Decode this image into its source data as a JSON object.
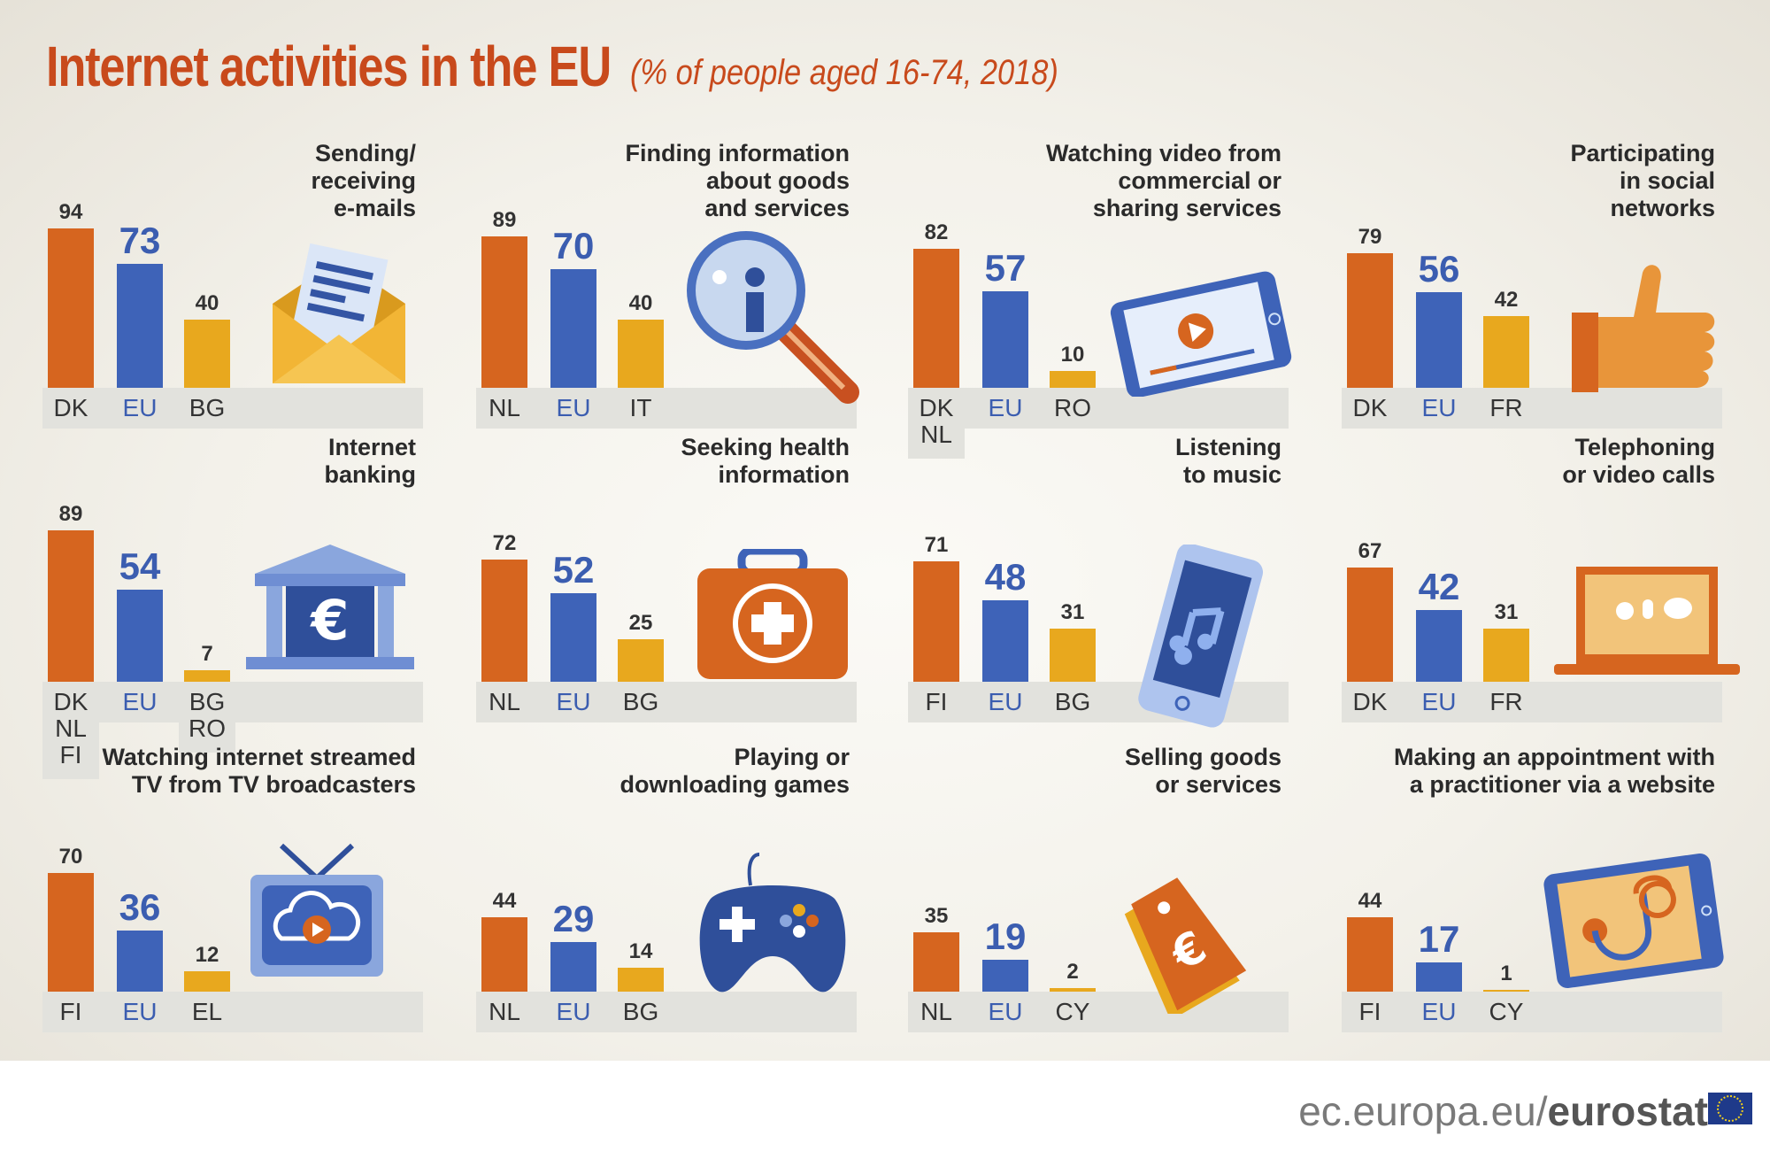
{
  "title": "Internet activities in the EU",
  "subtitle": "(% of people aged 16-74, 2018)",
  "colors": {
    "top": "#d6651f",
    "eu": "#3e63b8",
    "low": "#e8a81e",
    "title": "#c84a1c"
  },
  "footer": {
    "site": "ec.europa.eu/",
    "brand": "eurostat"
  },
  "chart_data": [
    {
      "type": "bar",
      "title": "Sending/\nreceiving\ne-mails",
      "categories": [
        "DK",
        "EU",
        "BG"
      ],
      "values": [
        94,
        73,
        40
      ],
      "icon": "email-envelope-icon"
    },
    {
      "type": "bar",
      "title": "Finding information\nabout goods\nand services",
      "categories": [
        "NL",
        "EU",
        "IT"
      ],
      "values": [
        89,
        70,
        40
      ],
      "icon": "magnifier-info-icon"
    },
    {
      "type": "bar",
      "title": "Watching video from\ncommercial or\nsharing services",
      "categories": [
        "DK\nNL",
        "EU",
        "RO"
      ],
      "values": [
        82,
        57,
        10
      ],
      "icon": "tablet-video-icon"
    },
    {
      "type": "bar",
      "title": "Participating\nin social\nnetworks",
      "categories": [
        "DK",
        "EU",
        "FR"
      ],
      "values": [
        79,
        56,
        42
      ],
      "icon": "thumbs-up-icon"
    },
    {
      "type": "bar",
      "title": "Internet\nbanking",
      "categories": [
        "DK\nNL\nFI",
        "EU",
        "BG\nRO"
      ],
      "values": [
        89,
        54,
        7
      ],
      "icon": "bank-euro-icon"
    },
    {
      "type": "bar",
      "title": "Seeking health\ninformation",
      "categories": [
        "NL",
        "EU",
        "BG"
      ],
      "values": [
        72,
        52,
        25
      ],
      "icon": "first-aid-kit-icon"
    },
    {
      "type": "bar",
      "title": "Listening\nto music",
      "categories": [
        "FI",
        "EU",
        "BG"
      ],
      "values": [
        71,
        48,
        31
      ],
      "icon": "phone-music-icon"
    },
    {
      "type": "bar",
      "title": "Telephoning\nor video calls",
      "categories": [
        "DK",
        "EU",
        "FR"
      ],
      "values": [
        67,
        42,
        31
      ],
      "icon": "laptop-call-icon"
    },
    {
      "type": "bar",
      "title": "Watching internet streamed\nTV from TV broadcasters",
      "categories": [
        "FI",
        "EU",
        "EL"
      ],
      "values": [
        70,
        36,
        12
      ],
      "icon": "tv-cloud-icon"
    },
    {
      "type": "bar",
      "title": "Playing or\ndownloading games",
      "categories": [
        "NL",
        "EU",
        "BG"
      ],
      "values": [
        44,
        29,
        14
      ],
      "icon": "gamepad-icon"
    },
    {
      "type": "bar",
      "title": "Selling goods\nor services",
      "categories": [
        "NL",
        "EU",
        "CY"
      ],
      "values": [
        35,
        19,
        2
      ],
      "icon": "price-tag-icon"
    },
    {
      "type": "bar",
      "title": "Making an appointment with\na practitioner via a website",
      "categories": [
        "FI",
        "EU",
        "CY"
      ],
      "values": [
        44,
        17,
        1
      ],
      "icon": "tablet-stethoscope-icon"
    }
  ]
}
